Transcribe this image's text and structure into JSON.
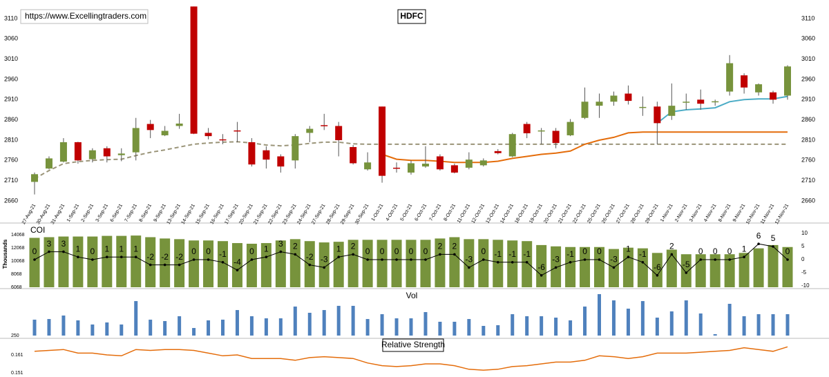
{
  "chart_data": [
    {
      "type": "candlestick",
      "title": "HDFC",
      "subtitle": "https://www.Excellingtraders.com",
      "categories": [
        "27-Aug-21",
        "30-Aug-21",
        "31-Aug-21",
        "1-Sep-21",
        "2-Sep-21",
        "3-Sep-21",
        "6-Sep-21",
        "7-Sep-21",
        "8-Sep-21",
        "9-Sep-21",
        "13-Sep-21",
        "14-Sep-21",
        "15-Sep-21",
        "16-Sep-21",
        "17-Sep-21",
        "20-Sep-21",
        "21-Sep-21",
        "22-Sep-21",
        "23-Sep-21",
        "24-Sep-21",
        "27-Sep-21",
        "28-Sep-21",
        "29-Sep-21",
        "30-Sep-21",
        "1-Oct-21",
        "4-Oct-21",
        "5-Oct-21",
        "6-Oct-21",
        "7-Oct-21",
        "8-Oct-21",
        "11-Oct-21",
        "12-Oct-21",
        "13-Oct-21",
        "14-Oct-21",
        "18-Oct-21",
        "19-Oct-21",
        "20-Oct-21",
        "21-Oct-21",
        "22-Oct-21",
        "25-Oct-21",
        "26-Oct-21",
        "27-Oct-21",
        "28-Oct-21",
        "29-Oct-21",
        "1-Nov-21",
        "2-Nov-21",
        "3-Nov-21",
        "4-Nov-21",
        "8-Nov-21",
        "9-Nov-21",
        "10-Nov-21",
        "11-Nov-21",
        "12-Nov-21"
      ],
      "open": [
        2707,
        2740,
        2757,
        2805,
        2763,
        2790,
        2773,
        2780,
        2850,
        2822,
        2845,
        3140,
        2828,
        2812,
        2834,
        2805,
        2785,
        2770,
        2760,
        2828,
        2847,
        2845,
        2793,
        2738,
        2893,
        2742,
        2730,
        2745,
        2770,
        2748,
        2742,
        2748,
        2783,
        2770,
        2850,
        2832,
        2833,
        2822,
        2865,
        2895,
        2905,
        2925,
        2890,
        2893,
        2870,
        2903,
        2910,
        2904,
        2930,
        2970,
        2928,
        2928,
        2920
      ],
      "high": [
        2730,
        2770,
        2815,
        2806,
        2790,
        2795,
        2790,
        2865,
        2860,
        2845,
        2875,
        3140,
        2840,
        2825,
        2855,
        2815,
        2795,
        2775,
        2825,
        2845,
        2875,
        2855,
        2798,
        2780,
        2893,
        2755,
        2760,
        2795,
        2775,
        2752,
        2780,
        2765,
        2788,
        2828,
        2855,
        2840,
        2840,
        2862,
        2940,
        2925,
        2930,
        2945,
        2918,
        2905,
        2950,
        2925,
        2935,
        2910,
        3020,
        2975,
        2950,
        2932,
        2995
      ],
      "low": [
        2676,
        2738,
        2755,
        2752,
        2755,
        2755,
        2758,
        2760,
        2815,
        2820,
        2838,
        2825,
        2812,
        2800,
        2805,
        2745,
        2740,
        2730,
        2740,
        2805,
        2835,
        2770,
        2750,
        2735,
        2705,
        2730,
        2725,
        2742,
        2735,
        2728,
        2738,
        2745,
        2775,
        2768,
        2815,
        2800,
        2790,
        2820,
        2862,
        2865,
        2895,
        2898,
        2870,
        2800,
        2860,
        2885,
        2885,
        2895,
        2920,
        2925,
        2920,
        2900,
        2910
      ],
      "close": [
        2726,
        2765,
        2805,
        2760,
        2785,
        2770,
        2777,
        2840,
        2835,
        2833,
        2851,
        2826,
        2820,
        2811,
        2832,
        2750,
        2762,
        2745,
        2820,
        2838,
        2845,
        2810,
        2753,
        2755,
        2722,
        2740,
        2753,
        2752,
        2738,
        2730,
        2762,
        2760,
        2778,
        2825,
        2827,
        2834,
        2803,
        2855,
        2905,
        2905,
        2920,
        2907,
        2892,
        2852,
        2895,
        2905,
        2900,
        2906,
        3000,
        2940,
        2948,
        2910,
        2992
      ],
      "up_color": "#77933c",
      "down_color": "#c00000",
      "series": [
        {
          "color": "#9a9478",
          "dashed": true,
          "values": [
            2715,
            2735,
            2752,
            2757,
            2760,
            2762,
            2763,
            2772,
            2780,
            2786,
            2793,
            2800,
            2803,
            2805,
            2806,
            2803,
            2798,
            2796,
            2798,
            2802,
            2805,
            2805,
            2801,
            2800,
            2800,
            2800,
            2800,
            2800,
            2800,
            2800,
            2800,
            2800,
            2800,
            2800,
            2800,
            2800,
            2800,
            2800,
            2800,
            2800,
            2800,
            2800,
            2800,
            2800,
            2800,
            2800,
            2800,
            2800,
            2800,
            2800,
            2800,
            2800,
            2800
          ]
        },
        {
          "color": "#e46c0a",
          "dashed": false,
          "values": [
            null,
            null,
            null,
            null,
            null,
            null,
            null,
            null,
            null,
            null,
            null,
            null,
            null,
            null,
            null,
            null,
            null,
            null,
            null,
            null,
            null,
            null,
            null,
            null,
            2775,
            2763,
            2760,
            2760,
            2758,
            2755,
            2755,
            2755,
            2758,
            2765,
            2770,
            2775,
            2778,
            2783,
            2800,
            2810,
            2817,
            2828,
            2830,
            2830,
            2830,
            2830,
            2830,
            2830,
            2830,
            2830,
            2830,
            2830,
            2830
          ]
        },
        {
          "color": "#4bacc6",
          "dashed": false,
          "values": [
            null,
            null,
            null,
            null,
            null,
            null,
            null,
            null,
            null,
            null,
            null,
            null,
            null,
            null,
            null,
            null,
            null,
            null,
            null,
            null,
            null,
            null,
            null,
            null,
            null,
            null,
            null,
            null,
            null,
            null,
            null,
            null,
            null,
            null,
            null,
            null,
            null,
            null,
            null,
            null,
            null,
            null,
            null,
            2852,
            2880,
            2885,
            2887,
            2890,
            2905,
            2910,
            2912,
            2912,
            2918
          ]
        }
      ],
      "ylim": [
        2660,
        3140
      ],
      "yticks": [
        2660,
        2710,
        2760,
        2810,
        2860,
        2910,
        2960,
        3010,
        3060,
        3110
      ]
    },
    {
      "type": "bar",
      "title": "COI",
      "y_label": "Thousands",
      "color": "#77933c",
      "values": [
        13600,
        13700,
        13800,
        13800,
        13800,
        13900,
        13900,
        13950,
        13700,
        13500,
        13400,
        13200,
        13200,
        13100,
        12800,
        12700,
        12800,
        13200,
        13400,
        13100,
        12900,
        13000,
        13300,
        13300,
        13300,
        13300,
        13300,
        13300,
        13500,
        13700,
        13400,
        13400,
        13300,
        13200,
        13100,
        12500,
        12300,
        12200,
        12200,
        12200,
        11900,
        12100,
        12000,
        11300,
        11800,
        11100,
        11100,
        11100,
        11100,
        11300,
        12000,
        12500,
        12200
      ],
      "ylim": [
        6068,
        14068
      ],
      "yticks": [
        6068,
        8068,
        10068,
        12068,
        14068
      ],
      "series": [
        {
          "color": "#000000",
          "axis": "y2",
          "values": [
            0,
            3,
            3,
            1,
            0,
            1,
            1,
            1,
            -2,
            -2,
            -2,
            0,
            0,
            -1,
            -4,
            0,
            1,
            3,
            2,
            -2,
            -3,
            1,
            2,
            0,
            0,
            0,
            0,
            0,
            2,
            2,
            -3,
            0,
            -1,
            -1,
            -1,
            -6,
            -3,
            -1,
            0,
            0,
            -3,
            1,
            -1,
            -6,
            2,
            -5,
            0,
            0,
            0,
            1,
            6,
            5,
            0
          ]
        }
      ],
      "y2lim": [
        -10,
        10
      ],
      "y2ticks": [
        -10,
        -5,
        0,
        5,
        10
      ]
    },
    {
      "type": "bar",
      "title": "Vol",
      "color": "#4f81bd",
      "values": [
        477,
        486,
        536,
        467,
        408,
        437,
        408,
        742,
        477,
        457,
        526,
        358,
        467,
        477,
        614,
        526,
        496,
        496,
        664,
        575,
        614,
        674,
        674,
        486,
        555,
        496,
        496,
        585,
        447,
        447,
        486,
        388,
        398,
        555,
        526,
        526,
        506,
        467,
        664,
        841,
        752,
        634,
        742,
        506,
        595,
        752,
        565,
        270,
        703,
        526,
        555,
        555,
        555
      ],
      "ylim": [
        250,
        900
      ],
      "yticks": [
        250
      ]
    },
    {
      "type": "line",
      "title": "Relative Strength",
      "color": "#e46c0a",
      "values": [
        0.163,
        0.1635,
        0.164,
        0.162,
        0.162,
        0.161,
        0.1605,
        0.164,
        0.1635,
        0.164,
        0.164,
        0.1635,
        0.162,
        0.1605,
        0.161,
        0.159,
        0.159,
        0.159,
        0.158,
        0.1595,
        0.16,
        0.1595,
        0.159,
        0.1565,
        0.155,
        0.1545,
        0.155,
        0.156,
        0.156,
        0.155,
        0.153,
        0.1525,
        0.153,
        0.1545,
        0.155,
        0.156,
        0.157,
        0.157,
        0.158,
        0.1605,
        0.16,
        0.159,
        0.16,
        0.162,
        0.162,
        0.162,
        0.1625,
        0.163,
        0.1635,
        0.165,
        0.164,
        0.163,
        0.1655
      ],
      "ylim": [
        0.151,
        0.166
      ],
      "yticks": [
        0.161,
        0.151
      ]
    }
  ]
}
